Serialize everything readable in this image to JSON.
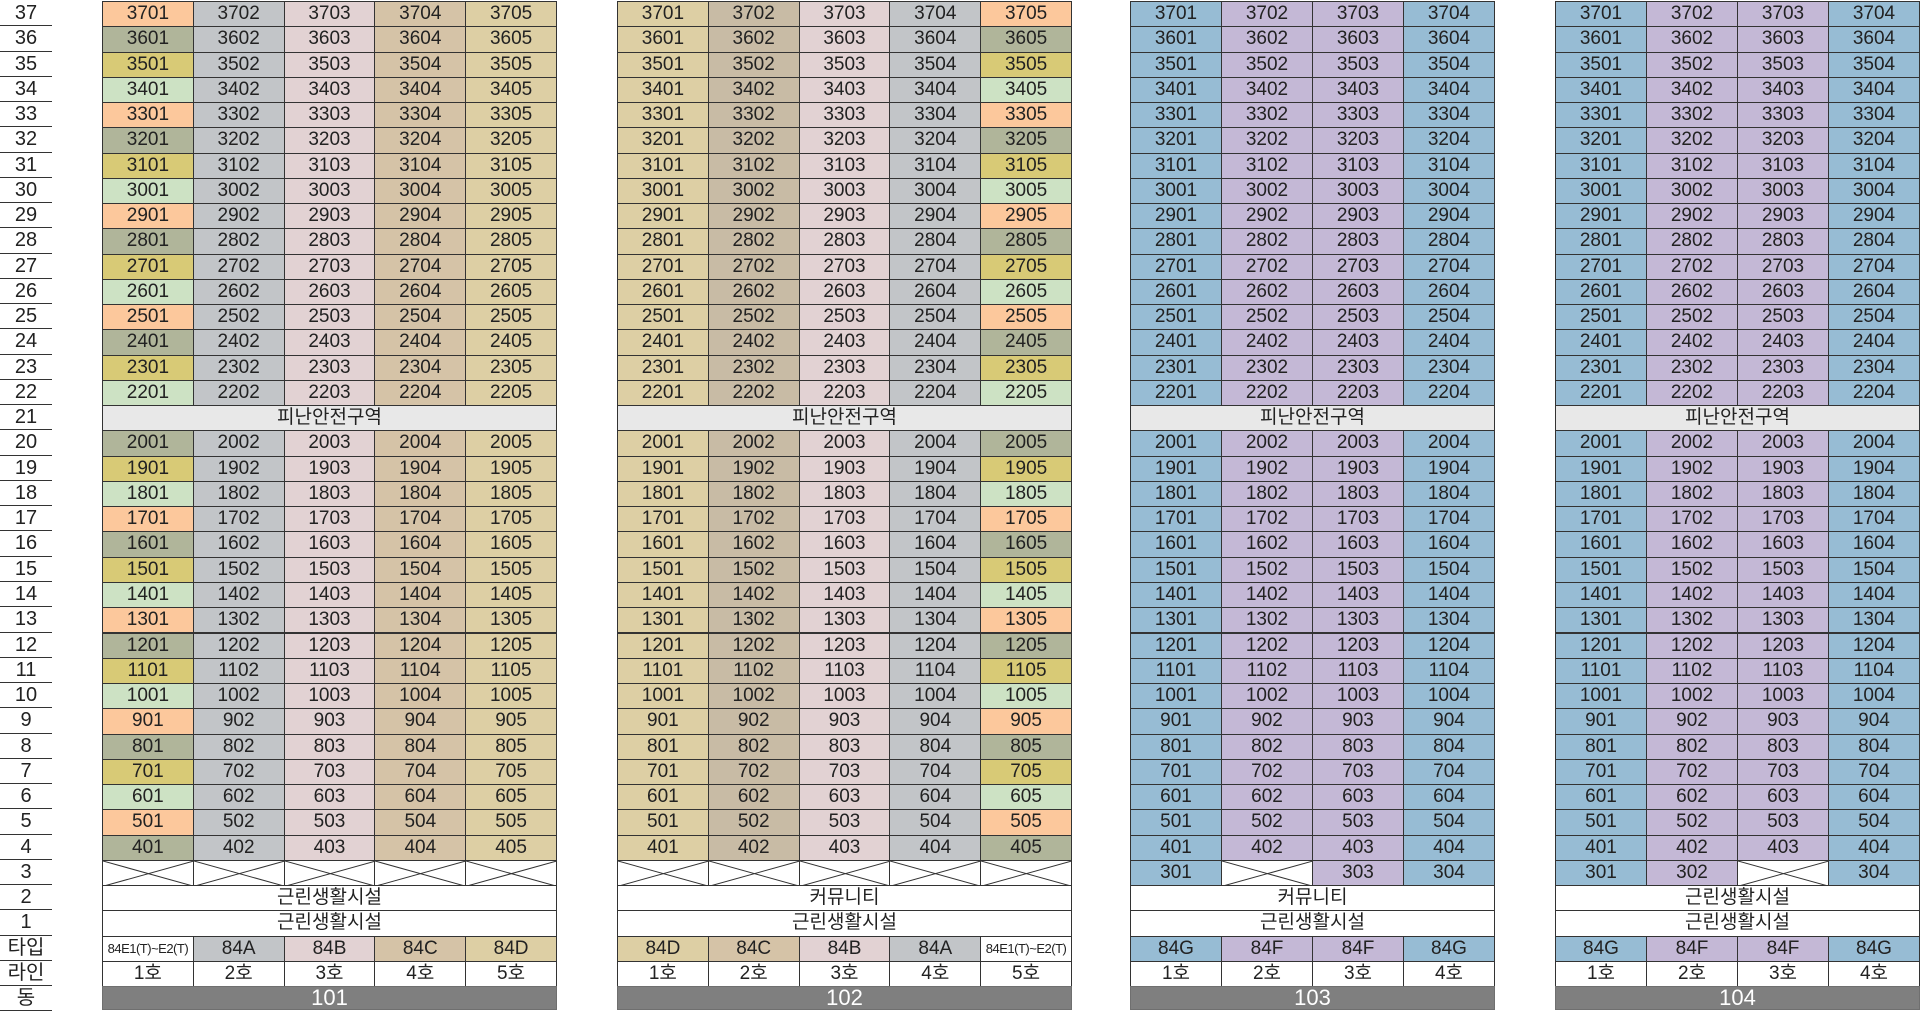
{
  "row_labels": [
    "37",
    "36",
    "35",
    "34",
    "33",
    "32",
    "31",
    "30",
    "29",
    "28",
    "27",
    "26",
    "25",
    "24",
    "23",
    "22",
    "21",
    "20",
    "19",
    "18",
    "17",
    "16",
    "15",
    "14",
    "13",
    "12",
    "11",
    "10",
    "9",
    "8",
    "7",
    "6",
    "5",
    "4",
    "3",
    "2",
    "1",
    "타입",
    "라인",
    "동"
  ],
  "refuge_label": "피난안전구역",
  "colors": {
    "sage": "#b0b59a",
    "peach": "#fcc89c",
    "mint": "#cde2c4",
    "olive": "#d8ca76",
    "beige": "#ddcfa4",
    "greige": "#c8bba5",
    "silver": "#c2c5c8",
    "pink": "#e2d2d3",
    "tan": "#d5c3a7",
    "blue": "#97bcd4",
    "lavender": "#c4b8d6",
    "refuge": "#e8e8e8",
    "header": "#7f7f7f"
  },
  "buildings": [
    {
      "name": "101",
      "lines": [
        "1호",
        "2호",
        "3호",
        "4호",
        "5호"
      ],
      "types": [
        "84E1(T)~E2(T)",
        "84A",
        "84B",
        "84C",
        "84D"
      ],
      "type_colors": [
        "white",
        "silver",
        "pink",
        "tan",
        "beige"
      ],
      "col_colors": [
        "cycle",
        "silver",
        "pink",
        "tan",
        "beige"
      ],
      "floor3": [
        "x",
        "x",
        "x",
        "x",
        "x"
      ],
      "floor2": "근린생활시설",
      "floor1": "근린생활시설"
    },
    {
      "name": "102",
      "lines": [
        "1호",
        "2호",
        "3호",
        "4호",
        "5호"
      ],
      "types": [
        "84D",
        "84C",
        "84B",
        "84A",
        "84E1(T)~E2(T)"
      ],
      "type_colors": [
        "beige",
        "tan",
        "pink",
        "silver",
        "white"
      ],
      "col_colors": [
        "beige",
        "greige",
        "pink",
        "silver",
        "cycle"
      ],
      "floor3": [
        "x",
        "x",
        "x",
        "x",
        "x"
      ],
      "floor2": "커뮤니티",
      "floor1": "근린생활시설"
    },
    {
      "name": "103",
      "lines": [
        "1호",
        "2호",
        "3호",
        "4호"
      ],
      "types": [
        "84G",
        "84F",
        "84F",
        "84G"
      ],
      "type_colors": [
        "blue",
        "lavender",
        "lavender",
        "blue"
      ],
      "col_colors": [
        "blue",
        "lavender",
        "lavender",
        "blue"
      ],
      "floor3": [
        "301",
        "x",
        "303",
        "304"
      ],
      "floor2": "커뮤니티",
      "floor1": "근린생활시설"
    },
    {
      "name": "104",
      "lines": [
        "1호",
        "2호",
        "3호",
        "4호"
      ],
      "types": [
        "84G",
        "84F",
        "84F",
        "84G"
      ],
      "type_colors": [
        "blue",
        "lavender",
        "lavender",
        "blue"
      ],
      "col_colors": [
        "blue",
        "lavender",
        "lavender",
        "blue"
      ],
      "floor3": [
        "301",
        "302",
        "x",
        "304"
      ],
      "floor2": "근린생활시설",
      "floor1": "근린생활시설"
    }
  ],
  "cycle_colors": [
    "peach",
    "mint",
    "olive",
    "sage"
  ]
}
